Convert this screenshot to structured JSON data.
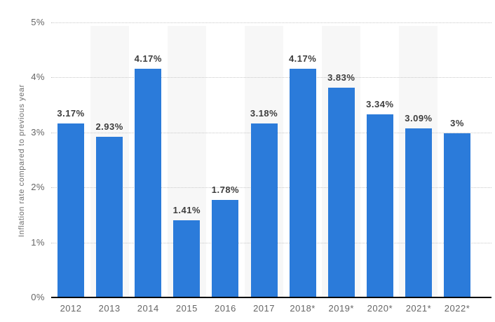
{
  "chart_data": {
    "type": "bar",
    "title": "",
    "xlabel": "",
    "ylabel": "Inflation rate compared to previous year",
    "categories": [
      "2012",
      "2013",
      "2014",
      "2015",
      "2016",
      "2017",
      "2018*",
      "2019*",
      "2020*",
      "2021*",
      "2022*"
    ],
    "values": [
      3.17,
      2.93,
      4.17,
      1.41,
      1.78,
      3.18,
      4.17,
      3.83,
      3.34,
      3.09,
      3
    ],
    "value_labels": [
      "3.17%",
      "2.93%",
      "4.17%",
      "1.41%",
      "1.78%",
      "3.18%",
      "4.17%",
      "3.83%",
      "3.34%",
      "3.09%",
      "3%"
    ],
    "ylim": [
      0,
      5
    ],
    "ytick_labels": [
      "0%",
      "1%",
      "2%",
      "3%",
      "4%",
      "5%"
    ],
    "grid": "horizontal-dotted",
    "legend_position": "none",
    "banded_category_indexes": [
      1,
      3,
      5,
      7,
      9
    ],
    "colors": {
      "bar": "#2b7bda",
      "band": "#f7f7f7",
      "grid": "#c9c9c9",
      "axis_line": "#000000",
      "tick_text": "#666666",
      "value_text": "#3d3d3d"
    }
  }
}
